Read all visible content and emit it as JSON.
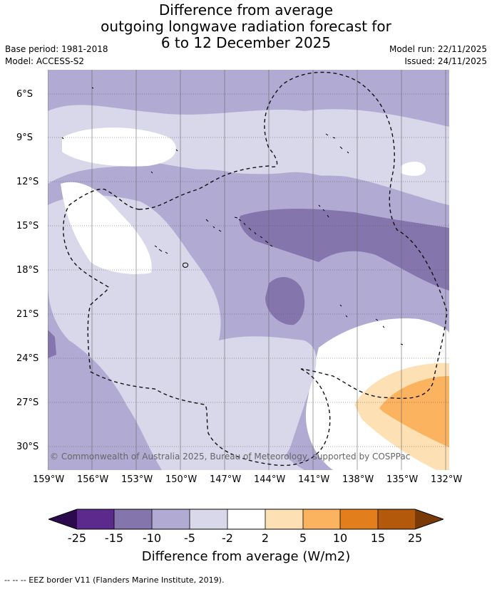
{
  "title": {
    "line1": "Difference from average",
    "line2": "outgoing longwave radiation forecast for",
    "line3": "6 to 12 December 2025"
  },
  "meta": {
    "base_period": "Base period: 1981-2018",
    "model": "Model: ACCESS-S2",
    "model_run": "Model run: 22/11/2025",
    "issued": "Issued: 24/11/2025"
  },
  "map": {
    "copyright": "© Commonwealth of Australia 2025, Bureau of Meteorology, supported by COSPPac",
    "lat_labels": [
      "6°S",
      "9°S",
      "12°S",
      "15°S",
      "18°S",
      "21°S",
      "24°S",
      "27°S",
      "30°S"
    ],
    "lon_labels": [
      "159°W",
      "156°W",
      "153°W",
      "150°W",
      "147°W",
      "144°W",
      "141°W",
      "138°W",
      "135°W",
      "132°W"
    ]
  },
  "colorbar": {
    "title": "Difference from average (W/m2)",
    "ticks": [
      "-25",
      "-15",
      "-10",
      "-5",
      "-2",
      "2",
      "5",
      "10",
      "15",
      "25"
    ],
    "colors": {
      "lt_minus25": "#2d0a4e",
      "m25_m15": "#5b2a8c",
      "m15_m10": "#8476ad",
      "m10_m5": "#b1abd3",
      "m5_m2": "#d8d8ea",
      "m2_p2": "#ffffff",
      "p2_p5": "#fde0b4",
      "p5_p10": "#fbb35f",
      "p10_p15": "#e27f1c",
      "p15_p25": "#b3590b",
      "gt_25": "#7a3a08"
    }
  },
  "legend_note": "--  --  -- EEZ border V11 (Flanders Marine Institute, 2019)."
}
